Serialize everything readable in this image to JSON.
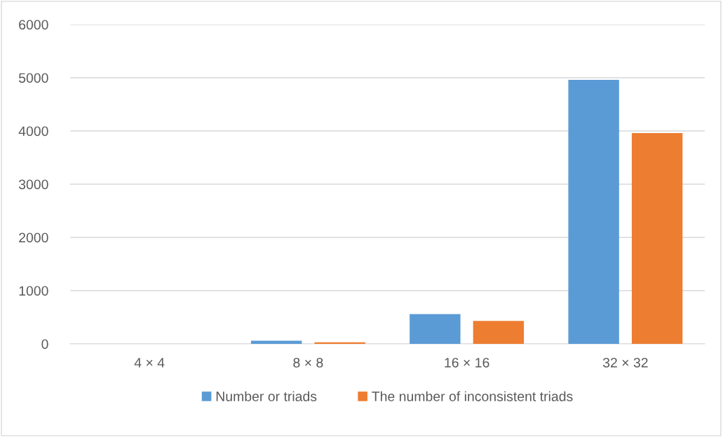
{
  "chart_data": {
    "type": "bar",
    "categories": [
      "4 × 4",
      "8 × 8",
      "16 × 16",
      "32 × 32"
    ],
    "series": [
      {
        "name": "Number or triads",
        "color": "#5b9bd5",
        "values": [
          null,
          60,
          560,
          4960
        ]
      },
      {
        "name": "The number of inconsistent triads",
        "color": "#ed7d31",
        "values": [
          null,
          30,
          430,
          3960
        ]
      }
    ],
    "ylim": [
      0,
      6000
    ],
    "yticks": [
      0,
      1000,
      2000,
      3000,
      4000,
      5000,
      6000
    ],
    "grid": "y",
    "legend": "bottom"
  }
}
